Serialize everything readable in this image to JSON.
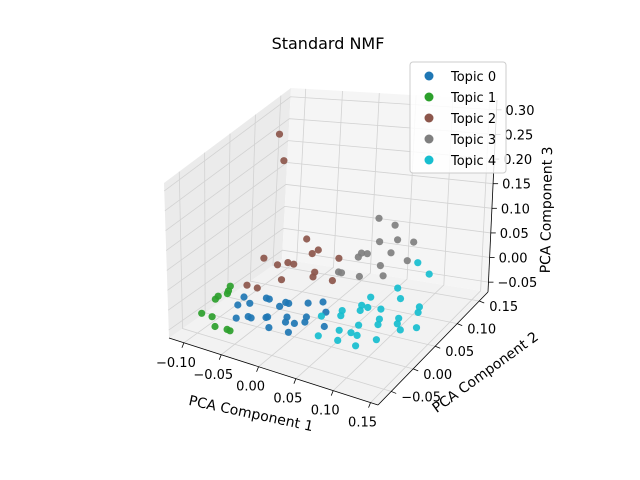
{
  "chart_data": {
    "type": "scatter",
    "projection": "3d",
    "title": "Standard NMF",
    "xlabel": "PCA Component 1",
    "ylabel": "PCA Component 2",
    "zlabel": "PCA Component 3",
    "xlim": [
      -0.12,
      0.16
    ],
    "ylim": [
      -0.08,
      0.17
    ],
    "zlim": [
      -0.07,
      0.32
    ],
    "xticks": [
      "−0.10",
      "−0.05",
      "0.00",
      "0.05",
      "0.10",
      "0.15"
    ],
    "yticks": [
      "−0.05",
      "0.00",
      "0.05",
      "0.10",
      "0.15"
    ],
    "zticks": [
      "−0.05",
      "0.00",
      "0.05",
      "0.10",
      "0.15",
      "0.20",
      "0.25",
      "0.30"
    ],
    "grid": true,
    "legend_position": "top-right",
    "series": [
      {
        "name": "Topic 0",
        "color": "#1f77b4",
        "points": [
          [
            -0.06,
            0.0,
            -0.02
          ],
          [
            -0.05,
            -0.02,
            -0.03
          ],
          [
            -0.04,
            0.01,
            -0.01
          ],
          [
            -0.03,
            -0.01,
            -0.03
          ],
          [
            -0.02,
            0.02,
            -0.02
          ],
          [
            -0.01,
            0.0,
            -0.03
          ],
          [
            0.0,
            -0.02,
            -0.02
          ],
          [
            0.01,
            0.01,
            -0.03
          ],
          [
            0.02,
            -0.01,
            -0.02
          ],
          [
            -0.04,
            -0.03,
            -0.02
          ],
          [
            -0.02,
            -0.03,
            -0.01
          ],
          [
            0.0,
            0.03,
            -0.02
          ],
          [
            -0.05,
            0.02,
            -0.02
          ],
          [
            0.01,
            -0.03,
            -0.03
          ],
          [
            -0.03,
            0.03,
            -0.03
          ],
          [
            -0.01,
            -0.04,
            -0.02
          ],
          [
            0.03,
            0.02,
            -0.02
          ],
          [
            -0.07,
            -0.01,
            -0.02
          ],
          [
            0.02,
            0.03,
            -0.01
          ],
          [
            -0.02,
            0.0,
            -0.01
          ],
          [
            -0.08,
            0.02,
            -0.03
          ],
          [
            0.0,
            0.0,
            -0.04
          ],
          [
            -0.06,
            -0.03,
            -0.03
          ],
          [
            0.04,
            0.0,
            -0.03
          ]
        ]
      },
      {
        "name": "Topic 1",
        "color": "#2ca02c",
        "points": [
          [
            -0.1,
            -0.04,
            -0.03
          ],
          [
            -0.09,
            -0.02,
            0.0
          ],
          [
            -0.08,
            -0.05,
            -0.02
          ],
          [
            -0.07,
            -0.06,
            -0.03
          ],
          [
            -0.09,
            0.0,
            -0.01
          ],
          [
            -0.06,
            -0.05,
            -0.04
          ],
          [
            -0.08,
            -0.01,
            0.02
          ],
          [
            -0.05,
            -0.06,
            -0.03
          ],
          [
            -0.1,
            -0.01,
            -0.02
          ],
          [
            -0.07,
            -0.03,
            0.03
          ]
        ]
      },
      {
        "name": "Topic 2",
        "color": "#8c564b",
        "points": [
          [
            -0.1,
            0.12,
            0.26
          ],
          [
            -0.08,
            0.1,
            0.22
          ],
          [
            -0.06,
            0.03,
            0.06
          ],
          [
            -0.04,
            0.05,
            0.04
          ],
          [
            -0.03,
            0.02,
            0.03
          ],
          [
            -0.02,
            0.07,
            0.05
          ],
          [
            -0.05,
            0.0,
            0.02
          ],
          [
            0.0,
            0.04,
            0.03
          ],
          [
            -0.01,
            0.06,
            0.02
          ],
          [
            -0.04,
            0.09,
            0.06
          ],
          [
            -0.07,
            0.01,
            0.01
          ],
          [
            0.01,
            0.08,
            0.04
          ],
          [
            -0.03,
            0.1,
            0.03
          ],
          [
            -0.06,
            0.06,
            0.02
          ],
          [
            0.02,
            0.05,
            0.02
          ],
          [
            -0.02,
            0.03,
            0.06
          ]
        ]
      },
      {
        "name": "Topic 3",
        "color": "#7f7f7f",
        "points": [
          [
            0.05,
            0.1,
            0.12
          ],
          [
            0.06,
            0.12,
            0.09
          ],
          [
            0.04,
            0.08,
            0.06
          ],
          [
            0.07,
            0.11,
            0.07
          ],
          [
            0.03,
            0.09,
            0.04
          ],
          [
            0.08,
            0.13,
            0.05
          ],
          [
            0.05,
            0.06,
            0.03
          ],
          [
            0.02,
            0.07,
            0.02
          ],
          [
            0.06,
            0.09,
            0.03
          ],
          [
            0.04,
            0.12,
            0.05
          ],
          [
            0.09,
            0.1,
            0.04
          ],
          [
            0.03,
            0.11,
            0.03
          ],
          [
            0.07,
            0.08,
            0.02
          ],
          [
            0.05,
            0.13,
            0.02
          ],
          [
            0.01,
            0.08,
            0.01
          ]
        ]
      },
      {
        "name": "Topic 4",
        "color": "#17becf",
        "points": [
          [
            0.05,
            0.02,
            -0.02
          ],
          [
            0.06,
            0.0,
            -0.03
          ],
          [
            0.07,
            0.03,
            -0.01
          ],
          [
            0.08,
            0.01,
            -0.02
          ],
          [
            0.09,
            0.04,
            -0.03
          ],
          [
            0.1,
            0.02,
            -0.02
          ],
          [
            0.11,
            0.05,
            -0.03
          ],
          [
            0.12,
            0.03,
            -0.02
          ],
          [
            0.04,
            0.04,
            -0.03
          ],
          [
            0.06,
            0.05,
            -0.02
          ],
          [
            0.08,
            0.06,
            -0.03
          ],
          [
            0.1,
            0.07,
            -0.01
          ],
          [
            0.07,
            -0.02,
            -0.03
          ],
          [
            0.09,
            -0.01,
            -0.02
          ],
          [
            0.11,
            0.0,
            -0.03
          ],
          [
            0.05,
            -0.03,
            -0.02
          ],
          [
            0.13,
            0.06,
            -0.02
          ],
          [
            0.12,
            0.08,
            -0.03
          ],
          [
            0.03,
            0.01,
            -0.02
          ],
          [
            0.14,
            0.04,
            -0.03
          ],
          [
            0.08,
            0.03,
            0.0
          ],
          [
            0.06,
            0.07,
            -0.02
          ],
          [
            0.1,
            -0.03,
            -0.02
          ],
          [
            0.09,
            0.08,
            0.0
          ],
          [
            0.12,
            0.1,
            0.02
          ],
          [
            0.11,
            0.09,
            0.05
          ],
          [
            0.07,
            0.01,
            -0.04
          ],
          [
            0.13,
            0.02,
            -0.02
          ]
        ]
      }
    ]
  }
}
